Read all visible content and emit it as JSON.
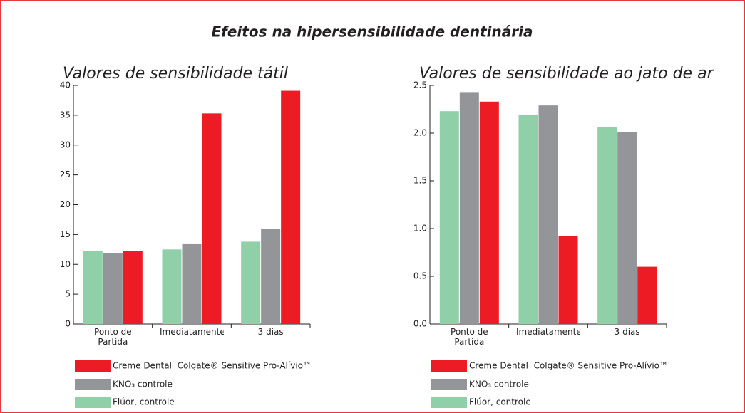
{
  "title": "Efeitos na hipersensibilidade dentinária",
  "chart_data": [
    {
      "type": "bar",
      "title": "Valores de sensibilidade tátil",
      "categories": [
        "Ponto de Partida",
        "Imediatamente",
        "3 dias"
      ],
      "series": [
        {
          "name": "Flúor, controle",
          "color": "#8fd0a8",
          "values": [
            12.3,
            12.5,
            13.8
          ]
        },
        {
          "name": "KNO₃ controle",
          "color": "#939598",
          "values": [
            11.9,
            13.5,
            15.9
          ]
        },
        {
          "name": "Creme Dental  Colgate® Sensitive Pro-Alívio™",
          "color": "#ed1c24",
          "values": [
            12.3,
            35.3,
            39.1
          ]
        }
      ],
      "ylim": [
        0,
        40
      ],
      "yticks": [
        0,
        5,
        10,
        15,
        20,
        25,
        30,
        35,
        40
      ]
    },
    {
      "type": "bar",
      "title": "Valores de sensibilidade ao jato de ar",
      "categories": [
        "Ponto de Partida",
        "Imediatamente",
        "3 dias"
      ],
      "series": [
        {
          "name": "Flúor, controle",
          "color": "#8fd0a8",
          "values": [
            2.23,
            2.19,
            2.06
          ]
        },
        {
          "name": "KNO₃ controle",
          "color": "#939598",
          "values": [
            2.43,
            2.29,
            2.01
          ]
        },
        {
          "name": "Creme Dental  Colgate® Sensitive Pro-Alívio™",
          "color": "#ed1c24",
          "values": [
            2.33,
            0.92,
            0.6
          ]
        }
      ],
      "ylim": [
        0,
        2.5
      ],
      "yticks": [
        {
          "value": 0,
          "label": "0.0"
        },
        0.5,
        {
          "value": 1,
          "label": "1.0"
        },
        1.5,
        {
          "value": 2,
          "label": "2.0"
        },
        2.5
      ]
    }
  ]
}
